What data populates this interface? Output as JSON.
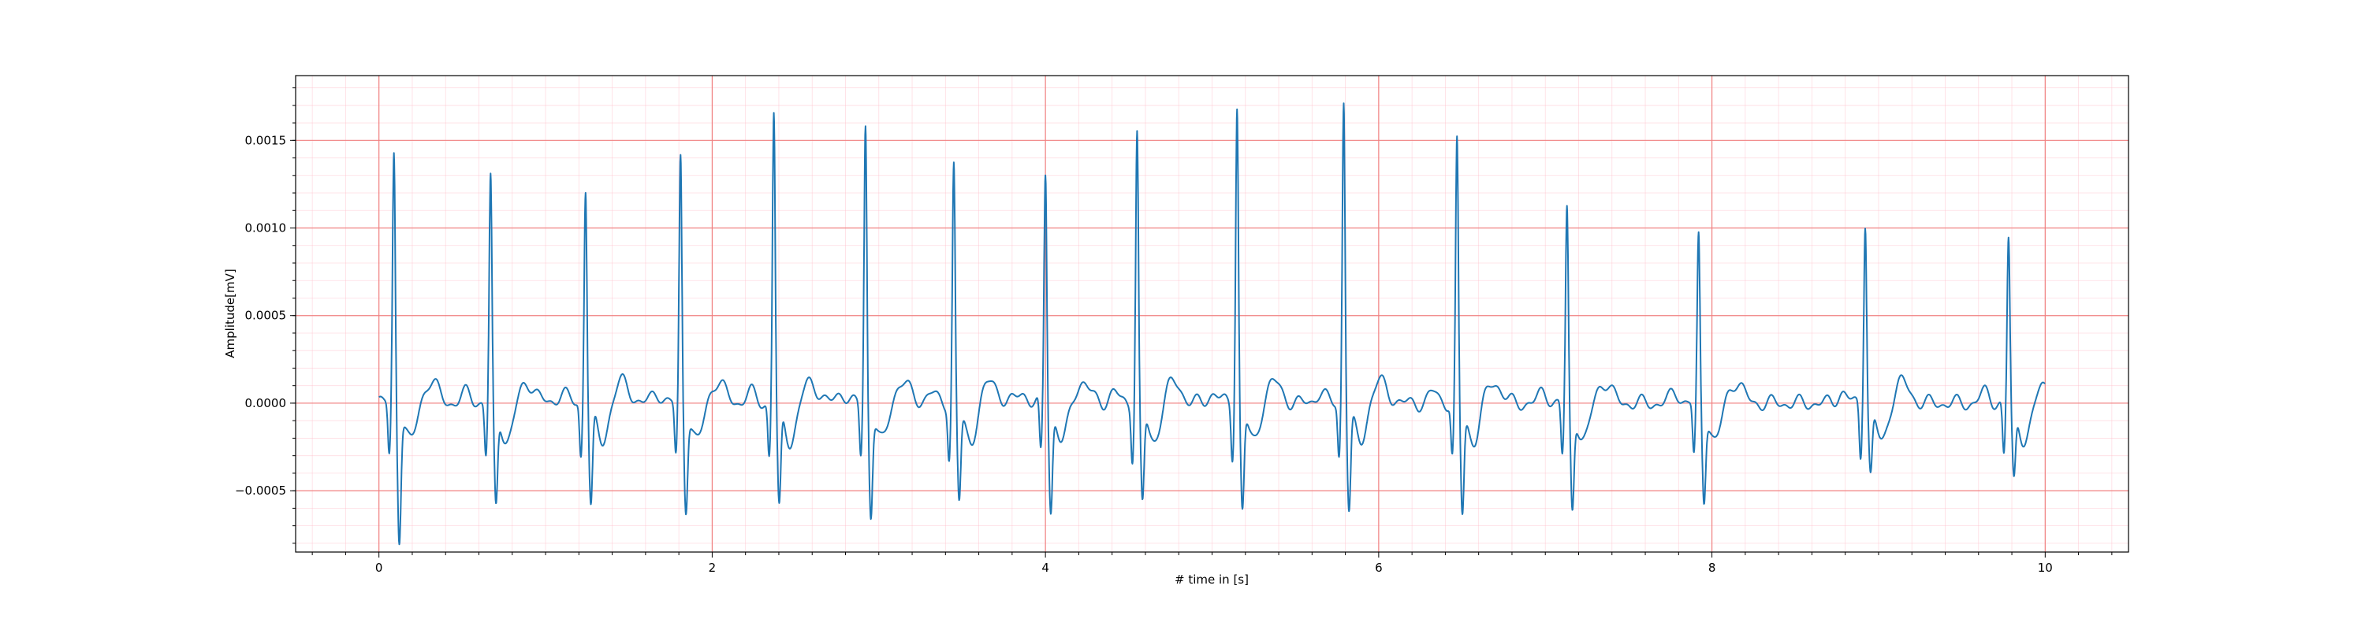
{
  "chart_data": {
    "type": "line",
    "title": "",
    "xlabel": "# time in [s]",
    "ylabel": "Amplitude[mV]",
    "xlim": [
      -0.5,
      10.5
    ],
    "ylim": [
      -0.00085,
      0.00187
    ],
    "x_ticks": [
      0,
      2,
      4,
      6,
      8,
      10
    ],
    "x_tick_labels": [
      "0",
      "2",
      "4",
      "6",
      "8",
      "10"
    ],
    "y_ticks": [
      -0.0005,
      0.0,
      0.0005,
      0.001,
      0.0015
    ],
    "y_tick_labels": [
      "−0.0005",
      "0.0000",
      "0.0005",
      "0.0010",
      "0.0015"
    ],
    "grid": {
      "major": true,
      "minor": true,
      "major_color": "#f08080",
      "minor_color": "#ffc0cb"
    },
    "line_color": "#1f77b4",
    "series": [
      {
        "name": "",
        "r_peak_times": [
          0.09,
          0.67,
          1.24,
          1.81,
          2.37,
          2.92,
          3.45,
          4.0,
          4.55,
          5.15,
          5.79,
          6.47,
          7.13,
          7.92,
          8.92,
          9.78
        ],
        "r_peak_values": [
          0.00143,
          0.00129,
          0.00124,
          0.00141,
          0.00167,
          0.00159,
          0.00137,
          0.00132,
          0.00156,
          0.00171,
          0.00174,
          0.00149,
          0.00111,
          0.00095,
          0.00105,
          0.00094
        ],
        "s_trough_values": [
          -0.00073,
          -0.00056,
          -0.00056,
          -0.00056,
          -0.00058,
          -0.0006,
          -0.00053,
          -0.00058,
          -0.00055,
          -0.00058,
          -0.00058,
          -0.0006,
          -0.00057,
          -0.00051,
          -0.00038,
          -0.00041
        ],
        "x_start": 0.0,
        "x_end": 10.0
      }
    ]
  }
}
